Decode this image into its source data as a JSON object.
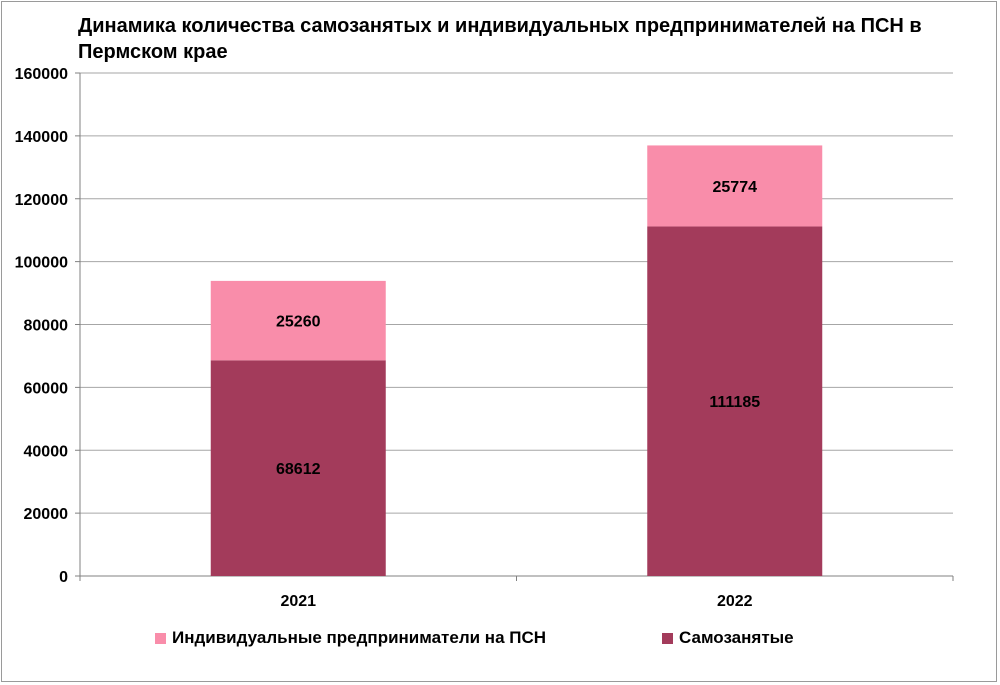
{
  "chart_data": {
    "type": "bar",
    "stacked": true,
    "title": "Динамика количества самозанятых и индивидуальных предпринимателей на ПСН в Пермском крае",
    "categories": [
      "2021",
      "2022"
    ],
    "series": [
      {
        "name": "Самозанятые",
        "values": [
          68612,
          111185
        ],
        "color": "#a33b5b"
      },
      {
        "name": "Индивидуальные предприниматели на ПСН",
        "values": [
          25260,
          25774
        ],
        "color": "#f98daa"
      }
    ],
    "ylim": [
      0,
      160000
    ],
    "yticks": [
      "0",
      "20000",
      "40000",
      "60000",
      "80000",
      "100000",
      "120000",
      "140000",
      "160000"
    ],
    "grid": true,
    "legend_position": "bottom",
    "legend_order": [
      "Индивидуальные предприниматели на ПСН",
      "Самозанятые"
    ]
  }
}
